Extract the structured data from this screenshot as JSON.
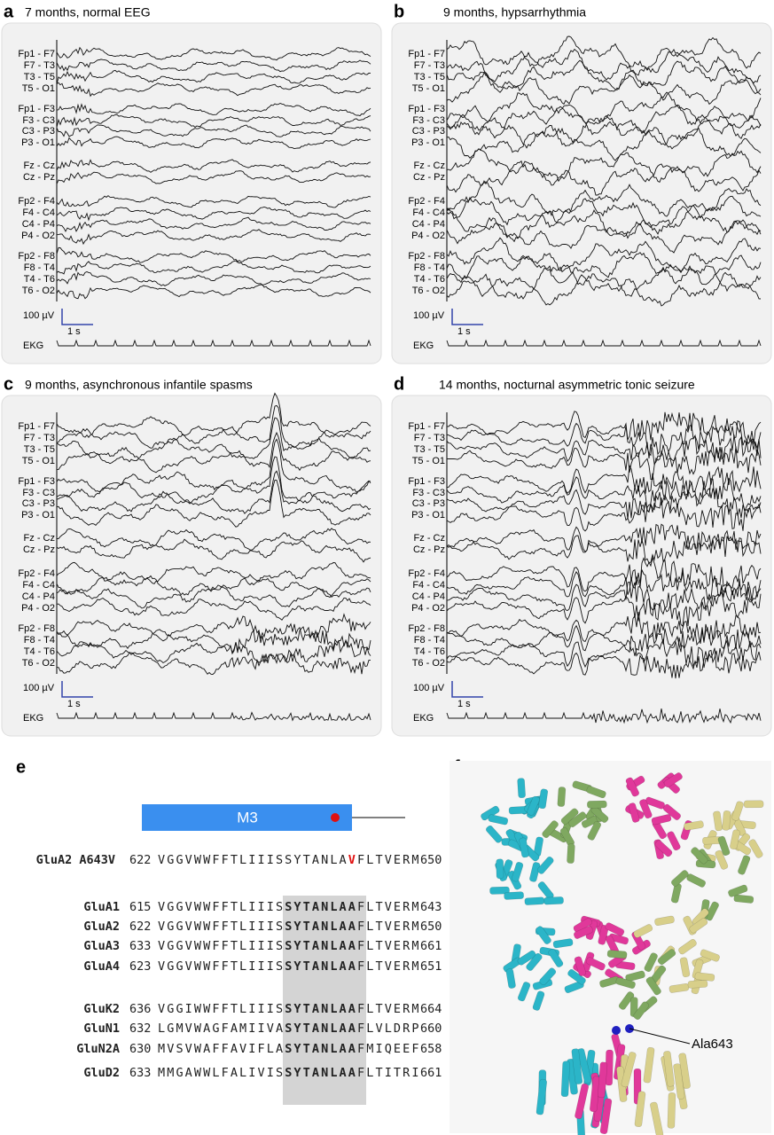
{
  "panels": [
    {
      "letter": "a",
      "title": "7 months, normal EEG"
    },
    {
      "letter": "b",
      "title": "9 months, hypsarrhythmia"
    },
    {
      "letter": "c",
      "title": "9 months, asynchronous infantile spasms"
    },
    {
      "letter": "d",
      "title": "14 months, nocturnal asymmetric tonic seizure"
    }
  ],
  "channels": [
    [
      "Fp1 - F7",
      "F7 - T3",
      "T3 - T5",
      "T5 - O1"
    ],
    [
      "Fp1 - F3",
      "F3 - C3",
      "C3 - P3",
      "P3 - O1"
    ],
    [
      "Fz - Cz",
      "Cz - Pz"
    ],
    [
      "Fp2 - F4",
      "F4 - C4",
      "C4 - P4",
      "P4 - O2"
    ],
    [
      "Fp2 - F8",
      "F8 - T4",
      "T4 - T6",
      "T6 - O2"
    ]
  ],
  "scale": {
    "amplitude": "100 µV",
    "time": "1 s"
  },
  "ekg": "EKG",
  "alignment": {
    "letter": "e",
    "domain": "M3",
    "mutant": {
      "name": "GluA2 A643V",
      "start": "622",
      "pre": "VGGVWWFFTLIIISSYTANLA",
      "site": "V",
      "post": "FLTVERM",
      "end": "650"
    },
    "groups": [
      [
        {
          "name": "GluA1",
          "start": "615",
          "pre": "VGGVWWFFTLIIIS",
          "core": "SYTANLA",
          "site": "A",
          "post": "FLTVERM",
          "end": "643"
        },
        {
          "name": "GluA2",
          "start": "622",
          "pre": "VGGVWWFFTLIIIS",
          "core": "SYTANLA",
          "site": "A",
          "post": "FLTVERM",
          "end": "650"
        },
        {
          "name": "GluA3",
          "start": "633",
          "pre": "VGGVWWFFTLIIIS",
          "core": "SYTANLA",
          "site": "A",
          "post": "FLTVERM",
          "end": "661"
        },
        {
          "name": "GluA4",
          "start": "623",
          "pre": "VGGVWWFFTLIIIS",
          "core": "SYTANLA",
          "site": "A",
          "post": "FLTVERM",
          "end": "651"
        }
      ],
      [
        {
          "name": "GluK2",
          "start": "636",
          "pre": "VGGIWWFFTLIIIS",
          "core": "SYTANLA",
          "site": "A",
          "post": "FLTVERM",
          "end": "664"
        },
        {
          "name": "GluN1",
          "start": "632",
          "pre": "LGMVWAGFAMIIVA",
          "core": "SYTANLA",
          "site": "A",
          "post": "FLVLDRP",
          "end": "660"
        },
        {
          "name": "GluN2A",
          "start": "630",
          "pre": "MVSVWAFFAVIFLA",
          "core": "SYTANLA",
          "site": "A",
          "post": "FMIQEEF",
          "end": "658"
        },
        {
          "name": "GluD2",
          "start": "633",
          "pre": "MMGAWWLFALIVIS",
          "core": "SYTANLA",
          "site": "A",
          "post": "FLTITRI",
          "end": "661"
        }
      ]
    ]
  },
  "structure": {
    "letter": "f",
    "label": "Ala643"
  }
}
